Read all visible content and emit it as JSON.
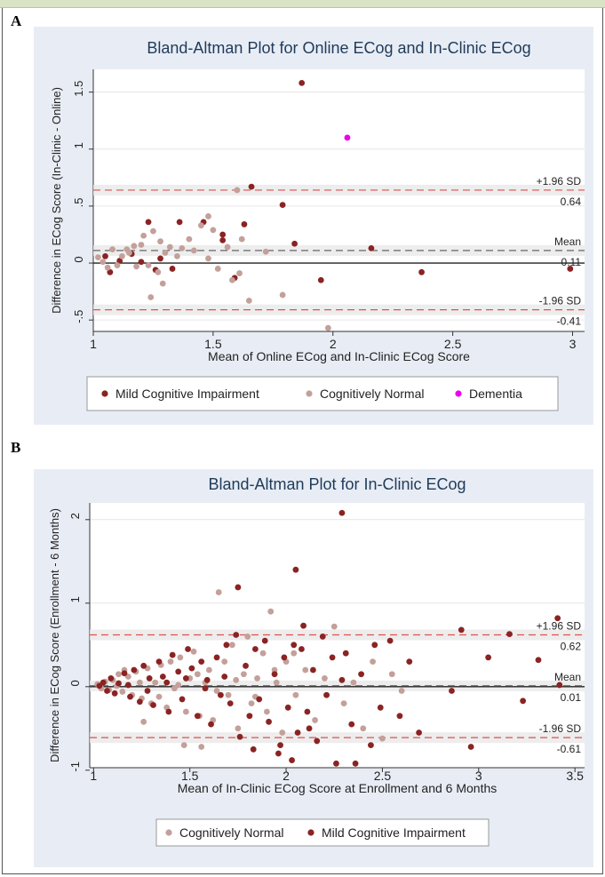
{
  "panels": [
    {
      "letter": "A"
    },
    {
      "letter": "B"
    }
  ],
  "chart_data": [
    {
      "type": "scatter",
      "title": "Bland-Altman Plot for Online ECog and In-Clinic ECog",
      "xlabel": "Mean of Online ECog and In-Clinic ECog Score",
      "ylabel": "Difference in ECog Score (In-Clinic - Online)",
      "xlim": [
        1,
        3.05
      ],
      "ylim": [
        -0.6,
        1.7
      ],
      "xticks": [
        1,
        1.5,
        2,
        2.5,
        3
      ],
      "yticks": [
        -0.5,
        0,
        0.5,
        1,
        1.5
      ],
      "xtick_labels": [
        "1",
        "1.5",
        "2",
        "2.5",
        "3"
      ],
      "ytick_labels": [
        "-.5",
        "0",
        ".5",
        "1",
        "1.5"
      ],
      "grid": "horizontal",
      "legend_position": "bottom",
      "reference_lines": [
        {
          "label": "+1.96 SD",
          "value_label": "0.64",
          "y": 0.64,
          "kind": "limit"
        },
        {
          "label": "Mean",
          "value_label": "0.11",
          "y": 0.11,
          "kind": "mean"
        },
        {
          "label": "-1.96 SD",
          "value_label": "-0.41",
          "y": -0.41,
          "kind": "limit"
        }
      ],
      "series": [
        {
          "name": "Mild Cognitive Impairment",
          "color": "#8b2323",
          "points": [
            [
              1.87,
              1.58
            ],
            [
              1.66,
              0.67
            ],
            [
              1.79,
              0.51
            ],
            [
              1.63,
              0.34
            ],
            [
              1.23,
              0.36
            ],
            [
              1.36,
              0.36
            ],
            [
              1.46,
              0.36
            ],
            [
              1.54,
              0.25
            ],
            [
              1.84,
              0.17
            ],
            [
              2.16,
              0.13
            ],
            [
              1.54,
              0.2
            ],
            [
              1.59,
              -0.13
            ],
            [
              1.07,
              -0.08
            ],
            [
              1.95,
              -0.15
            ],
            [
              2.37,
              -0.08
            ],
            [
              2.99,
              -0.05
            ],
            [
              1.16,
              0.08
            ],
            [
              1.26,
              -0.06
            ],
            [
              1.05,
              0.06
            ],
            [
              1.11,
              0.02
            ],
            [
              1.2,
              0.01
            ],
            [
              1.28,
              0.04
            ],
            [
              1.33,
              -0.05
            ]
          ]
        },
        {
          "name": "Cognitively Normal",
          "color": "#c4a09a",
          "points": [
            [
              1.6,
              0.64
            ],
            [
              1.48,
              0.41
            ],
            [
              1.5,
              0.29
            ],
            [
              1.45,
              0.33
            ],
            [
              1.4,
              0.21
            ],
            [
              1.62,
              0.21
            ],
            [
              1.56,
              0.14
            ],
            [
              1.37,
              0.13
            ],
            [
              1.21,
              0.24
            ],
            [
              1.17,
              0.15
            ],
            [
              1.14,
              0.12
            ],
            [
              1.08,
              0.12
            ],
            [
              1.28,
              0.19
            ],
            [
              1.25,
              0.28
            ],
            [
              1.32,
              0.14
            ],
            [
              1.3,
              0.09
            ],
            [
              1.12,
              0.06
            ],
            [
              1.18,
              -0.03
            ],
            [
              1.02,
              0.05
            ],
            [
              1.04,
              0.01
            ],
            [
              1.1,
              -0.02
            ],
            [
              1.23,
              -0.02
            ],
            [
              1.27,
              -0.08
            ],
            [
              1.29,
              -0.18
            ],
            [
              1.24,
              -0.3
            ],
            [
              1.48,
              0.04
            ],
            [
              1.52,
              -0.05
            ],
            [
              1.58,
              -0.15
            ],
            [
              1.61,
              -0.09
            ],
            [
              1.65,
              -0.33
            ],
            [
              1.72,
              0.1
            ],
            [
              1.79,
              -0.28
            ],
            [
              1.98,
              -0.57
            ],
            [
              1.15,
              0.09
            ],
            [
              1.2,
              0.16
            ],
            [
              1.35,
              0.06
            ],
            [
              1.42,
              0.11
            ],
            [
              1.06,
              -0.04
            ]
          ]
        },
        {
          "name": "Dementia",
          "color": "#ee00ee",
          "points": [
            [
              2.06,
              1.1
            ]
          ]
        }
      ]
    },
    {
      "type": "scatter",
      "title": "Bland-Altman Plot for In-Clinic ECog",
      "xlabel": "Mean of In-Clinic ECog Score at Enrollment and 6 Months",
      "ylabel": "Difference in ECog Score (Enrollment - 6 Months)",
      "xlim": [
        0.98,
        3.55
      ],
      "ylim": [
        -0.97,
        2.2
      ],
      "xticks": [
        1,
        1.5,
        2,
        2.5,
        3,
        3.5
      ],
      "yticks": [
        -1,
        0,
        1,
        2
      ],
      "xtick_labels": [
        "1",
        "1.5",
        "2",
        "2.5",
        "3",
        "3.5"
      ],
      "ytick_labels": [
        "-1",
        "0",
        "1",
        "2"
      ],
      "grid": "horizontal",
      "legend_position": "bottom",
      "reference_lines": [
        {
          "label": "+1.96 SD",
          "value_label": "0.62",
          "y": 0.62,
          "kind": "limit"
        },
        {
          "label": "Mean",
          "value_label": "0.01",
          "y": 0.01,
          "kind": "mean"
        },
        {
          "label": "-1.96 SD",
          "value_label": "-0.61",
          "y": -0.61,
          "kind": "limit"
        }
      ],
      "series": [
        {
          "name": "Cognitively Normal",
          "color": "#c4a09a",
          "points": [
            [
              1.02,
              0.03
            ],
            [
              1.04,
              -0.02
            ],
            [
              1.06,
              0.06
            ],
            [
              1.08,
              -0.04
            ],
            [
              1.1,
              0.08
            ],
            [
              1.12,
              0.01
            ],
            [
              1.15,
              -0.06
            ],
            [
              1.18,
              0.12
            ],
            [
              1.2,
              -0.1
            ],
            [
              1.22,
              0.18
            ],
            [
              1.25,
              -0.14
            ],
            [
              1.28,
              0.22
            ],
            [
              1.3,
              -0.2
            ],
            [
              1.32,
              0.05
            ],
            [
              1.35,
              0.26
            ],
            [
              1.38,
              -0.25
            ],
            [
              1.4,
              0.3
            ],
            [
              1.42,
              -0.02
            ],
            [
              1.45,
              0.35
            ],
            [
              1.48,
              -0.3
            ],
            [
              1.5,
              0.1
            ],
            [
              1.52,
              0.42
            ],
            [
              1.55,
              -0.35
            ],
            [
              1.58,
              0.05
            ],
            [
              1.6,
              0.2
            ],
            [
              1.62,
              -0.4
            ],
            [
              1.65,
              1.13
            ],
            [
              1.68,
              0.3
            ],
            [
              1.7,
              -0.1
            ],
            [
              1.72,
              0.5
            ],
            [
              1.75,
              -0.5
            ],
            [
              1.78,
              0.15
            ],
            [
              1.8,
              0.6
            ],
            [
              1.82,
              -0.2
            ],
            [
              1.85,
              0.1
            ],
            [
              1.88,
              0.4
            ],
            [
              1.9,
              -0.3
            ],
            [
              1.92,
              0.9
            ],
            [
              1.95,
              0.05
            ],
            [
              1.98,
              -0.55
            ],
            [
              2.0,
              0.3
            ],
            [
              2.05,
              -0.1
            ],
            [
              2.1,
              0.2
            ],
            [
              2.15,
              -0.4
            ],
            [
              2.2,
              0.1
            ],
            [
              2.25,
              0.72
            ],
            [
              2.3,
              -0.2
            ],
            [
              2.35,
              0.05
            ],
            [
              2.4,
              -0.5
            ],
            [
              2.45,
              0.3
            ],
            [
              2.5,
              -0.62
            ],
            [
              2.55,
              0.15
            ],
            [
              2.6,
              -0.05
            ],
            [
              1.13,
              0.15
            ],
            [
              1.16,
              0.2
            ],
            [
              1.24,
              0.05
            ],
            [
              1.34,
              -0.12
            ],
            [
              1.44,
              0.02
            ],
            [
              1.54,
              0.15
            ],
            [
              1.64,
              -0.05
            ],
            [
              1.74,
              0.08
            ],
            [
              1.84,
              -0.12
            ],
            [
              1.94,
              0.2
            ],
            [
              2.04,
              0.4
            ],
            [
              1.47,
              -0.7
            ],
            [
              1.56,
              -0.72
            ],
            [
              1.26,
              -0.42
            ]
          ]
        },
        {
          "name": "Mild Cognitive Impairment",
          "color": "#8b2323",
          "points": [
            [
              2.29,
              2.08
            ],
            [
              2.05,
              1.4
            ],
            [
              1.75,
              1.19
            ],
            [
              1.03,
              0.01
            ],
            [
              1.05,
              0.05
            ],
            [
              1.07,
              -0.05
            ],
            [
              1.09,
              0.1
            ],
            [
              1.11,
              -0.08
            ],
            [
              1.13,
              0.04
            ],
            [
              1.16,
              0.16
            ],
            [
              1.19,
              -0.12
            ],
            [
              1.21,
              0.2
            ],
            [
              1.24,
              -0.18
            ],
            [
              1.26,
              0.25
            ],
            [
              1.29,
              0.1
            ],
            [
              1.31,
              -0.22
            ],
            [
              1.34,
              0.3
            ],
            [
              1.36,
              0.12
            ],
            [
              1.39,
              -0.3
            ],
            [
              1.41,
              0.38
            ],
            [
              1.44,
              0.18
            ],
            [
              1.46,
              -0.15
            ],
            [
              1.49,
              0.45
            ],
            [
              1.51,
              0.22
            ],
            [
              1.54,
              -0.35
            ],
            [
              1.56,
              0.3
            ],
            [
              1.59,
              0.08
            ],
            [
              1.61,
              -0.45
            ],
            [
              1.64,
              0.35
            ],
            [
              1.66,
              -0.1
            ],
            [
              1.69,
              0.5
            ],
            [
              1.71,
              -0.2
            ],
            [
              1.74,
              0.62
            ],
            [
              1.76,
              -0.6
            ],
            [
              1.79,
              0.25
            ],
            [
              1.81,
              -0.35
            ],
            [
              1.84,
              0.45
            ],
            [
              1.86,
              -0.15
            ],
            [
              1.89,
              0.55
            ],
            [
              1.91,
              -0.42
            ],
            [
              1.94,
              0.15
            ],
            [
              1.96,
              -0.8
            ],
            [
              1.99,
              0.35
            ],
            [
              2.01,
              -0.25
            ],
            [
              2.04,
              0.5
            ],
            [
              2.06,
              -0.55
            ],
            [
              2.09,
              0.73
            ],
            [
              2.11,
              -0.3
            ],
            [
              2.14,
              0.2
            ],
            [
              2.16,
              -0.65
            ],
            [
              2.19,
              0.6
            ],
            [
              2.21,
              -0.1
            ],
            [
              2.24,
              0.35
            ],
            [
              2.26,
              -0.92
            ],
            [
              2.31,
              0.4
            ],
            [
              2.34,
              -0.45
            ],
            [
              2.39,
              0.15
            ],
            [
              2.44,
              -0.7
            ],
            [
              2.46,
              0.5
            ],
            [
              2.49,
              -0.25
            ],
            [
              2.54,
              0.55
            ],
            [
              2.59,
              -0.35
            ],
            [
              2.64,
              0.3
            ],
            [
              2.69,
              -0.55
            ],
            [
              2.86,
              -0.05
            ],
            [
              2.91,
              0.68
            ],
            [
              2.96,
              -0.72
            ],
            [
              3.05,
              0.35
            ],
            [
              3.16,
              0.63
            ],
            [
              3.23,
              -0.17
            ],
            [
              3.31,
              0.32
            ],
            [
              3.41,
              0.82
            ],
            [
              3.42,
              0.02
            ],
            [
              2.08,
              0.45
            ],
            [
              1.97,
              -0.7
            ],
            [
              1.83,
              -0.75
            ],
            [
              2.12,
              -0.5
            ],
            [
              2.36,
              -0.92
            ],
            [
              2.03,
              -0.88
            ],
            [
              2.29,
              0.08
            ],
            [
              1.18,
              0.02
            ],
            [
              1.28,
              -0.05
            ],
            [
              1.38,
              0.05
            ],
            [
              1.48,
              0.1
            ],
            [
              1.58,
              -0.02
            ],
            [
              1.68,
              0.12
            ]
          ]
        }
      ]
    }
  ]
}
